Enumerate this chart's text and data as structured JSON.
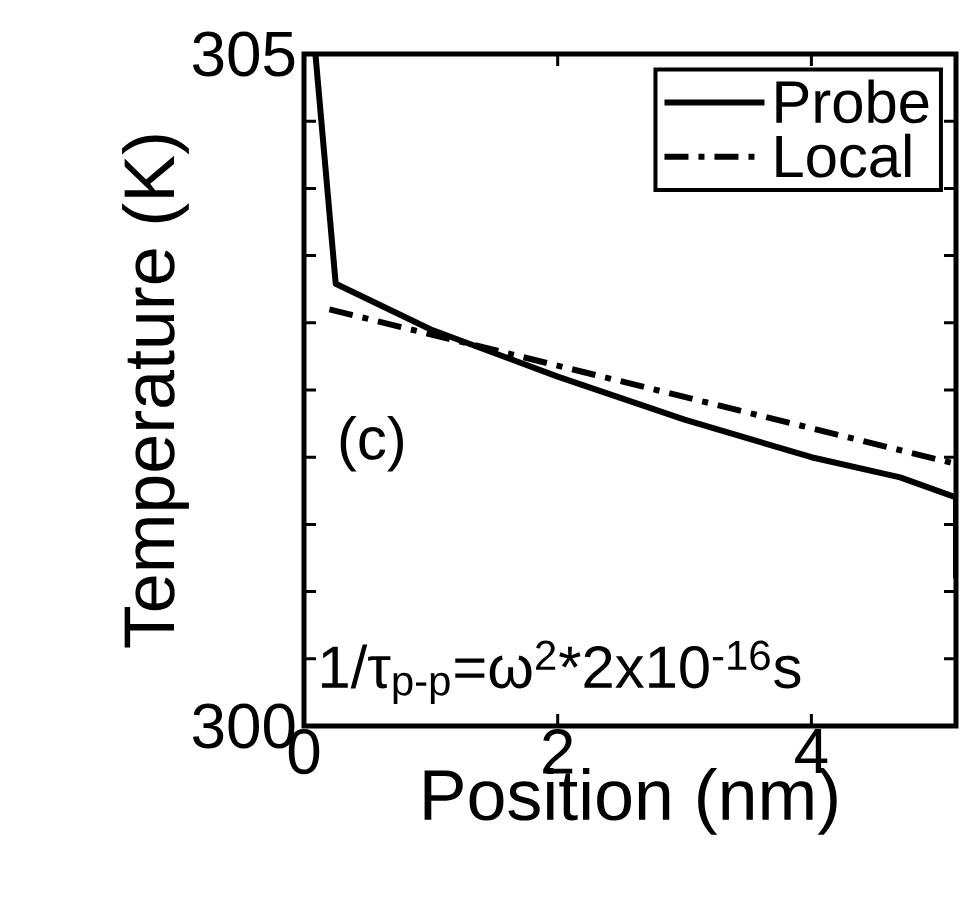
{
  "chart_data": {
    "type": "line",
    "xlabel": "Position (nm)",
    "ylabel": "Temperature (K)",
    "xlim": [
      0,
      5.14
    ],
    "ylim": [
      300,
      305
    ],
    "xticks": [
      0,
      2,
      4
    ],
    "yticks": [
      300,
      {
        "value": 300.5,
        "label": null
      },
      {
        "value": 301,
        "label": null
      },
      {
        "value": 301.5,
        "label": null
      },
      {
        "value": 302,
        "label": null
      },
      {
        "value": 302.5,
        "label": null
      },
      {
        "value": 303,
        "label": null
      },
      {
        "value": 303.5,
        "label": null
      },
      {
        "value": 304,
        "label": null
      },
      {
        "value": 304.5,
        "label": null
      },
      305
    ],
    "legend": "top right",
    "marker": "none",
    "annotations": [
      "(c)",
      "1/τ$_{p-p}$=ω$^{2}$*2x10$^{-16}$s"
    ],
    "series": [
      {
        "name": "Probe",
        "color": "#000000",
        "line_style": "solid",
        "x": [
          0.09,
          0.25,
          1,
          2,
          3,
          4,
          4.7,
          5.14,
          5.14
        ],
        "values": [
          305,
          303.29,
          302.95,
          302.6,
          302.28,
          302.0,
          301.85,
          301.7,
          301.1
        ]
      },
      {
        "name": "Local",
        "color": "#000000",
        "line_style": "dashdot",
        "x": [
          0.2,
          5.14
        ],
        "values": [
          303.1,
          301.95
        ]
      }
    ]
  }
}
